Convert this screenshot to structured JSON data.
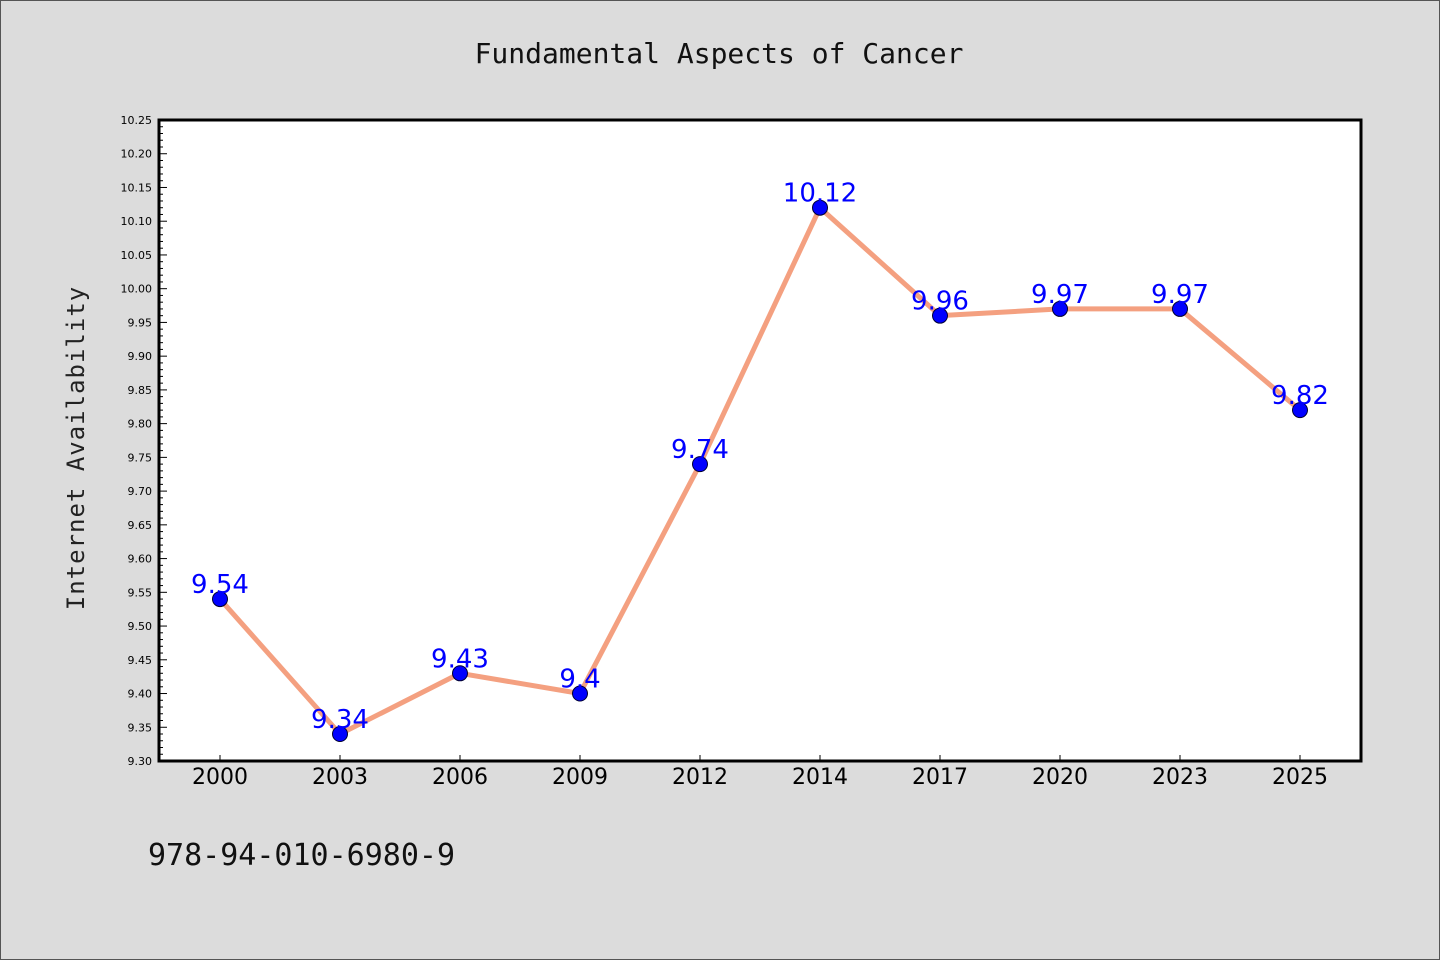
{
  "chart_data": {
    "type": "line",
    "title": "Fundamental Aspects of Cancer",
    "xlabel": "",
    "ylabel": "Internet Availability",
    "categories": [
      "2000",
      "2003",
      "2006",
      "2009",
      "2012",
      "2014",
      "2017",
      "2020",
      "2023",
      "2025"
    ],
    "values": [
      9.54,
      9.34,
      9.43,
      9.4,
      9.74,
      10.12,
      9.96,
      9.97,
      9.97,
      9.82
    ],
    "data_labels": [
      "9.54",
      "9.34",
      "9.43",
      "9.4",
      "9.74",
      "10.12",
      "9.96",
      "9.97",
      "9.97",
      "9.82"
    ],
    "ylim": [
      9.3,
      10.25
    ],
    "ytick_labels": [
      "9.30",
      "9.35",
      "9.40",
      "9.45",
      "9.50",
      "9.55",
      "9.60",
      "9.65",
      "9.70",
      "9.75",
      "9.80",
      "9.85",
      "9.90",
      "9.95",
      "10.00",
      "10.05",
      "10.10",
      "10.15",
      "10.20",
      "10.25"
    ],
    "grid": false,
    "line_color": "#f4a080",
    "marker_color": "#0000ff",
    "label_color": "#0000ff",
    "background_color": "#dcdcdc",
    "plot_background_color": "#ffffff"
  },
  "footer": {
    "isbn": "978-94-010-6980-9"
  }
}
